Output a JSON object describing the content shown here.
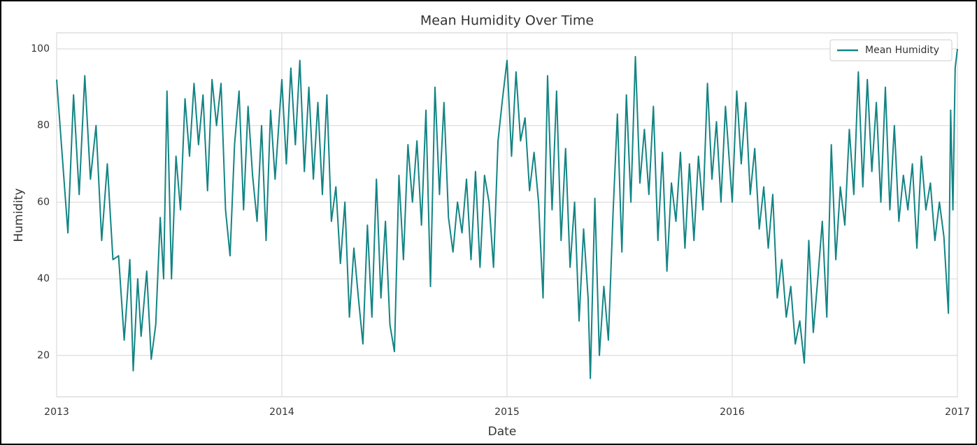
{
  "chart_data": {
    "type": "line",
    "title": "Mean Humidity Over Time",
    "x_label": "Date",
    "y_label": "Humidity",
    "x": [
      2013.0,
      2013.025,
      2013.05,
      2013.075,
      2013.1,
      2013.125,
      2013.15,
      2013.175,
      2013.2,
      2013.225,
      2013.25,
      2013.275,
      2013.3,
      2013.325,
      2013.34,
      2013.36,
      2013.375,
      2013.4,
      2013.42,
      2013.44,
      2013.46,
      2013.475,
      2013.49,
      2013.51,
      2013.53,
      2013.55,
      2013.57,
      2013.59,
      2013.61,
      2013.63,
      2013.65,
      2013.67,
      2013.69,
      2013.71,
      2013.73,
      2013.75,
      2013.77,
      2013.79,
      2013.81,
      2013.83,
      2013.85,
      2013.87,
      2013.89,
      2013.91,
      2013.93,
      2013.95,
      2013.97,
      2014.0,
      2014.02,
      2014.04,
      2014.06,
      2014.08,
      2014.1,
      2014.12,
      2014.14,
      2014.16,
      2014.18,
      2014.2,
      2014.22,
      2014.24,
      2014.26,
      2014.28,
      2014.3,
      2014.32,
      2014.34,
      2014.36,
      2014.38,
      2014.4,
      2014.42,
      2014.44,
      2014.46,
      2014.48,
      2014.5,
      2014.52,
      2014.54,
      2014.56,
      2014.58,
      2014.6,
      2014.62,
      2014.64,
      2014.66,
      2014.68,
      2014.7,
      2014.72,
      2014.74,
      2014.76,
      2014.78,
      2014.8,
      2014.82,
      2014.84,
      2014.86,
      2014.88,
      2014.9,
      2014.92,
      2014.94,
      2014.96,
      2014.98,
      2015.0,
      2015.02,
      2015.04,
      2015.06,
      2015.08,
      2015.1,
      2015.12,
      2015.14,
      2015.16,
      2015.18,
      2015.2,
      2015.22,
      2015.24,
      2015.26,
      2015.28,
      2015.3,
      2015.32,
      2015.34,
      2015.36,
      2015.37,
      2015.39,
      2015.41,
      2015.43,
      2015.45,
      2015.47,
      2015.49,
      2015.51,
      2015.53,
      2015.55,
      2015.57,
      2015.59,
      2015.61,
      2015.63,
      2015.65,
      2015.67,
      2015.69,
      2015.71,
      2015.73,
      2015.75,
      2015.77,
      2015.79,
      2015.81,
      2015.83,
      2015.85,
      2015.87,
      2015.89,
      2015.91,
      2015.93,
      2015.95,
      2015.97,
      2016.0,
      2016.02,
      2016.04,
      2016.06,
      2016.08,
      2016.1,
      2016.12,
      2016.14,
      2016.16,
      2016.18,
      2016.2,
      2016.22,
      2016.24,
      2016.26,
      2016.28,
      2016.3,
      2016.32,
      2016.34,
      2016.36,
      2016.38,
      2016.4,
      2016.42,
      2016.44,
      2016.46,
      2016.48,
      2016.5,
      2016.52,
      2016.54,
      2016.56,
      2016.58,
      2016.6,
      2016.62,
      2016.64,
      2016.66,
      2016.68,
      2016.7,
      2016.72,
      2016.74,
      2016.76,
      2016.78,
      2016.8,
      2016.82,
      2016.84,
      2016.86,
      2016.88,
      2016.9,
      2016.92,
      2016.94,
      2016.96,
      2016.97,
      2016.98,
      2016.99,
      2017.0
    ],
    "series": [
      {
        "name": "Mean Humidity",
        "color": "#138484",
        "values": [
          92,
          72,
          52,
          88,
          62,
          93,
          66,
          80,
          50,
          70,
          45,
          46,
          24,
          45,
          16,
          40,
          25,
          42,
          19,
          28,
          56,
          40,
          89,
          40,
          72,
          58,
          87,
          72,
          91,
          75,
          88,
          63,
          92,
          80,
          91,
          58,
          46,
          75,
          89,
          58,
          85,
          67,
          55,
          80,
          50,
          84,
          66,
          92,
          70,
          95,
          75,
          97,
          68,
          90,
          66,
          86,
          62,
          88,
          55,
          64,
          44,
          60,
          30,
          48,
          35,
          23,
          54,
          30,
          66,
          35,
          55,
          28,
          21,
          67,
          45,
          75,
          60,
          76,
          54,
          84,
          38,
          90,
          62,
          86,
          56,
          47,
          60,
          52,
          66,
          45,
          68,
          43,
          67,
          60,
          43,
          76,
          87,
          97,
          72,
          94,
          76,
          82,
          63,
          73,
          60,
          35,
          93,
          58,
          89,
          50,
          74,
          43,
          60,
          29,
          53,
          35,
          14,
          61,
          20,
          38,
          24,
          56,
          83,
          47,
          88,
          60,
          98,
          65,
          79,
          62,
          85,
          50,
          73,
          42,
          65,
          55,
          73,
          48,
          70,
          50,
          72,
          58,
          91,
          66,
          81,
          60,
          85,
          60,
          89,
          70,
          86,
          62,
          74,
          53,
          64,
          48,
          62,
          35,
          45,
          30,
          38,
          23,
          29,
          18,
          50,
          26,
          40,
          55,
          30,
          75,
          45,
          64,
          54,
          79,
          62,
          94,
          64,
          92,
          68,
          86,
          60,
          90,
          58,
          80,
          55,
          67,
          58,
          70,
          48,
          72,
          58,
          65,
          50,
          60,
          51,
          31,
          84,
          58,
          95,
          100
        ]
      }
    ],
    "xlim": [
      2013,
      2017
    ],
    "xticks": [
      2013,
      2014,
      2015,
      2016,
      2017
    ],
    "ylim": [
      9.2,
      104.2
    ],
    "yticks": [
      20,
      40,
      60,
      80,
      100
    ],
    "grid": true,
    "legend": "upper right"
  }
}
